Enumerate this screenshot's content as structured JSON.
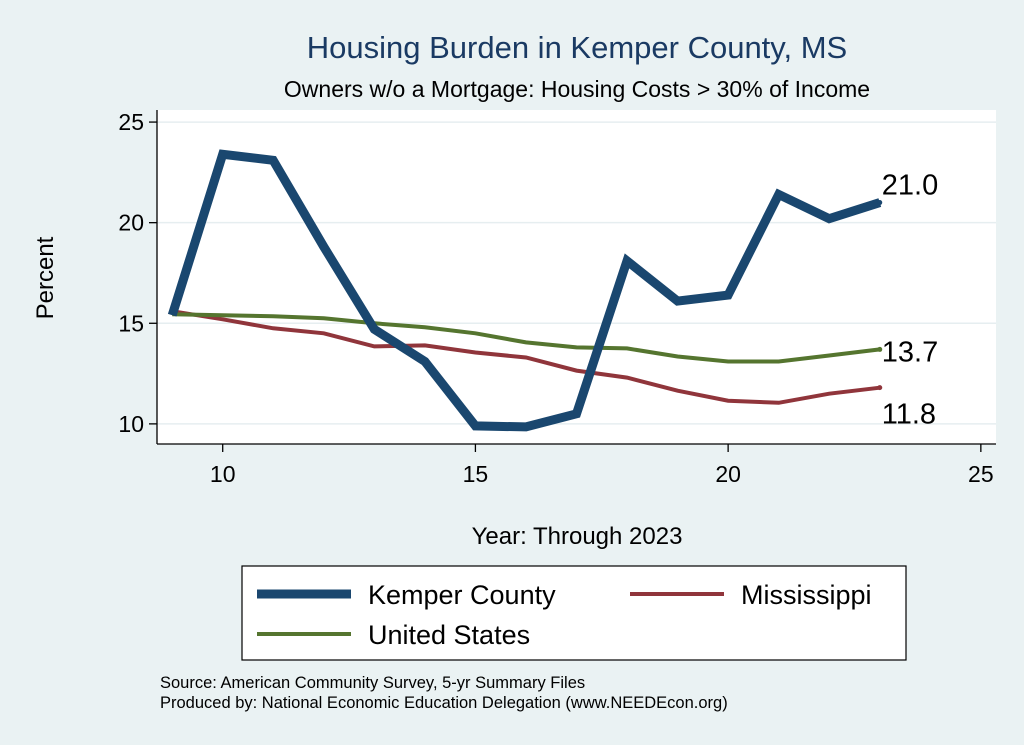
{
  "colors": {
    "background": "#eaf2f3",
    "plot_background": "#ffffff",
    "grid": "#e6eef0",
    "kemper": "#1a476f",
    "mississippi": "#90353b",
    "united_states": "#55752f",
    "title": "#1a3a63"
  },
  "chart_data": {
    "type": "line",
    "title": "Housing Burden in Kemper County, MS",
    "subtitle": "Owners w/o a Mortgage: Housing Costs > 30% of Income",
    "xlabel": "Year: Through 2023",
    "ylabel": "Percent",
    "xlim": [
      8.7,
      25.3
    ],
    "ylim": [
      9.0,
      25.6
    ],
    "x_ticks": [
      10,
      15,
      20,
      25
    ],
    "y_ticks": [
      10,
      15,
      20,
      25
    ],
    "grid": true,
    "legend_position": "bottom",
    "x": [
      9,
      10,
      11,
      12,
      13,
      14,
      15,
      16,
      17,
      18,
      19,
      20,
      21,
      22,
      23
    ],
    "series": [
      {
        "name": "Kemper County",
        "color_key": "kemper",
        "width": 9,
        "values": [
          15.4,
          23.4,
          23.1,
          18.8,
          14.7,
          13.1,
          9.9,
          9.85,
          10.5,
          18.1,
          16.1,
          16.4,
          21.4,
          20.2,
          21.0
        ],
        "end_label": "21.0"
      },
      {
        "name": "Mississippi",
        "color_key": "mississippi",
        "width": 4,
        "values": [
          15.6,
          15.2,
          14.75,
          14.5,
          13.85,
          13.9,
          13.55,
          13.3,
          12.65,
          12.3,
          11.65,
          11.15,
          11.05,
          11.5,
          11.8
        ],
        "end_label": "11.8"
      },
      {
        "name": "United States",
        "color_key": "united_states",
        "width": 4,
        "values": [
          15.45,
          15.4,
          15.35,
          15.25,
          15.0,
          14.8,
          14.5,
          14.05,
          13.8,
          13.75,
          13.35,
          13.1,
          13.1,
          13.4,
          13.7
        ],
        "end_label": "13.7"
      }
    ]
  },
  "source_lines": [
    "Source: American Community Survey, 5-yr Summary Files",
    "Produced by: National Economic Education Delegation (www.NEEDEcon.org)"
  ]
}
